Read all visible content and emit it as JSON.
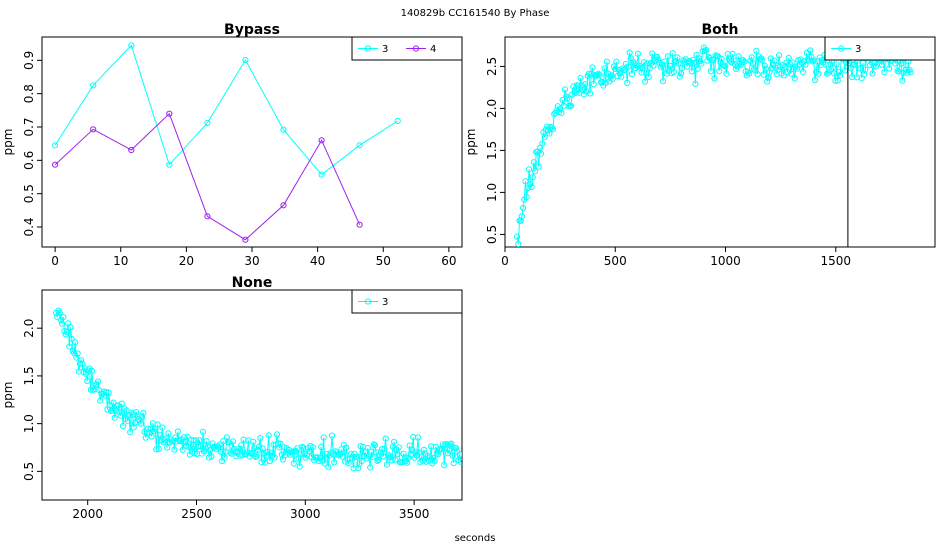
{
  "header": {
    "title": "140829b    CC161540   By Phase"
  },
  "footer": {
    "xlabel": "seconds"
  },
  "colors": {
    "series3": "#00FFFF",
    "series4": "#A020F0",
    "axis": "#000000"
  },
  "chart_data": [
    {
      "type": "line",
      "title": "Bypass",
      "ylabel": "ppm",
      "xlim": [
        -2,
        62
      ],
      "ylim": [
        0.34,
        0.97
      ],
      "xticks": [
        0,
        10,
        20,
        30,
        40,
        50,
        60
      ],
      "yticks": [
        0.4,
        0.5,
        0.6,
        0.7,
        0.8,
        0.9
      ],
      "legend": {
        "position": "top-right",
        "entries": [
          "3",
          "4"
        ]
      },
      "series": [
        {
          "name": "3",
          "color": "#00FFFF",
          "x": [
            0,
            5.8,
            11.6,
            17.4,
            23.2,
            29.0,
            34.8,
            40.6,
            46.4,
            52.2
          ],
          "y": [
            0.645,
            0.825,
            0.945,
            0.587,
            0.712,
            0.901,
            0.692,
            0.557,
            0.645,
            0.718
          ]
        },
        {
          "name": "4",
          "color": "#A020F0",
          "x": [
            0,
            5.8,
            11.6,
            17.4,
            23.2,
            29.0,
            34.8,
            40.6,
            46.4
          ],
          "y": [
            0.587,
            0.693,
            0.631,
            0.74,
            0.432,
            0.362,
            0.465,
            0.66,
            0.407
          ]
        }
      ]
    },
    {
      "type": "line",
      "title": "Both",
      "ylabel": "ppm",
      "xlim": [
        0,
        1950
      ],
      "ylim": [
        0.35,
        2.85
      ],
      "xticks": [
        0,
        500,
        1000,
        1500
      ],
      "yticks": [
        0.5,
        1.0,
        1.5,
        2.0,
        2.5
      ],
      "vline": 1555,
      "legend": {
        "position": "top-right",
        "entries": [
          "3"
        ]
      },
      "series": [
        {
          "name": "3",
          "color": "#00FFFF",
          "x_range": [
            55,
            1840
          ],
          "n": 330,
          "model": "exp_rise",
          "y_start": 0.42,
          "y_plateau": 2.52,
          "tau": 140,
          "noise": 0.12
        }
      ]
    },
    {
      "type": "line",
      "title": "None",
      "ylabel": "ppm",
      "xlim": [
        1790,
        3720
      ],
      "ylim": [
        0.2,
        2.4
      ],
      "xticks": [
        2000,
        2500,
        3000,
        3500
      ],
      "yticks": [
        0.5,
        1.0,
        1.5,
        2.0
      ],
      "legend": {
        "position": "top-right",
        "entries": [
          "3"
        ]
      },
      "series": [
        {
          "name": "3",
          "color": "#00FFFF",
          "x_range": [
            1855,
            3715
          ],
          "n": 340,
          "model": "exp_decay",
          "y_start": 2.25,
          "y_plateau": 0.68,
          "tau": 230,
          "noise": 0.1
        }
      ]
    }
  ]
}
